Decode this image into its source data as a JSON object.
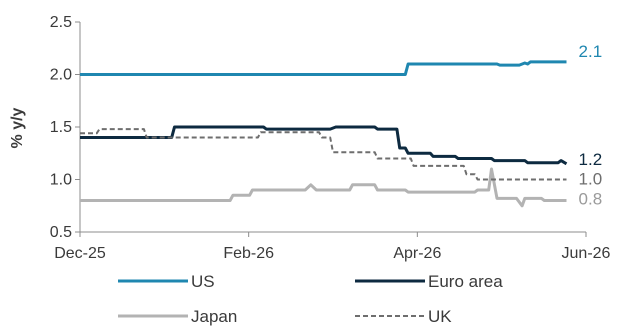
{
  "chart_data": {
    "type": "line",
    "title": "",
    "xlabel": "",
    "ylabel": "% y/y",
    "ylim": [
      0.5,
      2.5
    ],
    "yticks": [
      "0.5",
      "1.0",
      "1.5",
      "2.0",
      "2.5"
    ],
    "xticks": [
      "Dec-25",
      "Feb-26",
      "Apr-26",
      "Jun-26"
    ],
    "xlim": [
      "2025-12-01",
      "2026-06-01"
    ],
    "grid": false,
    "legend": "bottom",
    "series": [
      {
        "name": "US",
        "color": "#1f87b0",
        "dash": "solid",
        "end_label": "2.1",
        "x": [
          "2025-12-01",
          "2026-03-28",
          "2026-03-29",
          "2026-04-30",
          "2026-05-01",
          "2026-05-08",
          "2026-05-10",
          "2026-05-11",
          "2026-05-12",
          "2026-05-25"
        ],
        "y": [
          2.0,
          2.0,
          2.1,
          2.1,
          2.09,
          2.09,
          2.11,
          2.1,
          2.12,
          2.12
        ]
      },
      {
        "name": "Euro area",
        "color": "#0d2a40",
        "dash": "solid",
        "end_label": "1.2",
        "x": [
          "2025-12-01",
          "2026-01-03",
          "2026-01-04",
          "2026-02-05",
          "2026-02-06",
          "2026-03-01",
          "2026-03-03",
          "2026-03-17",
          "2026-03-18",
          "2026-03-25",
          "2026-03-26",
          "2026-03-28",
          "2026-03-29",
          "2026-04-06",
          "2026-04-07",
          "2026-04-15",
          "2026-04-16",
          "2026-04-28",
          "2026-04-29",
          "2026-05-10",
          "2026-05-11",
          "2026-05-22",
          "2026-05-23",
          "2026-05-25"
        ],
        "y": [
          1.4,
          1.4,
          1.5,
          1.5,
          1.48,
          1.48,
          1.5,
          1.5,
          1.48,
          1.48,
          1.3,
          1.3,
          1.25,
          1.25,
          1.22,
          1.22,
          1.2,
          1.2,
          1.18,
          1.18,
          1.16,
          1.16,
          1.18,
          1.15
        ]
      },
      {
        "name": "Japan",
        "color": "#b3b3b3",
        "dash": "solid",
        "end_label": "0.8",
        "x": [
          "2025-12-01",
          "2026-01-24",
          "2026-01-25",
          "2026-01-31",
          "2026-02-01",
          "2026-02-20",
          "2026-02-22",
          "2026-02-24",
          "2026-03-08",
          "2026-03-09",
          "2026-03-17",
          "2026-03-18",
          "2026-03-28",
          "2026-03-29",
          "2026-04-22",
          "2026-04-23",
          "2026-04-27",
          "2026-04-28",
          "2026-04-30",
          "2026-05-03",
          "2026-05-04",
          "2026-05-07",
          "2026-05-09",
          "2026-05-10",
          "2026-05-16",
          "2026-05-17",
          "2026-05-25"
        ],
        "y": [
          0.8,
          0.8,
          0.85,
          0.85,
          0.9,
          0.9,
          0.95,
          0.9,
          0.9,
          0.95,
          0.95,
          0.9,
          0.9,
          0.88,
          0.88,
          0.9,
          0.9,
          1.1,
          0.82,
          0.82,
          0.82,
          0.82,
          0.75,
          0.82,
          0.82,
          0.8,
          0.8
        ]
      },
      {
        "name": "UK",
        "color": "#6e6e6e",
        "dash": "dashed",
        "end_label": "1.0",
        "x": [
          "2025-12-01",
          "2025-12-07",
          "2025-12-08",
          "2025-12-24",
          "2025-12-25",
          "2026-02-03",
          "2026-02-04",
          "2026-02-25",
          "2026-02-26",
          "2026-03-01",
          "2026-03-02",
          "2026-03-17",
          "2026-03-18",
          "2026-03-30",
          "2026-03-31",
          "2026-04-18",
          "2026-04-19",
          "2026-04-22",
          "2026-04-23",
          "2026-05-25"
        ],
        "y": [
          1.44,
          1.44,
          1.48,
          1.48,
          1.4,
          1.4,
          1.45,
          1.45,
          1.4,
          1.4,
          1.26,
          1.26,
          1.2,
          1.2,
          1.13,
          1.13,
          1.05,
          1.05,
          1.0,
          1.0
        ]
      }
    ]
  }
}
